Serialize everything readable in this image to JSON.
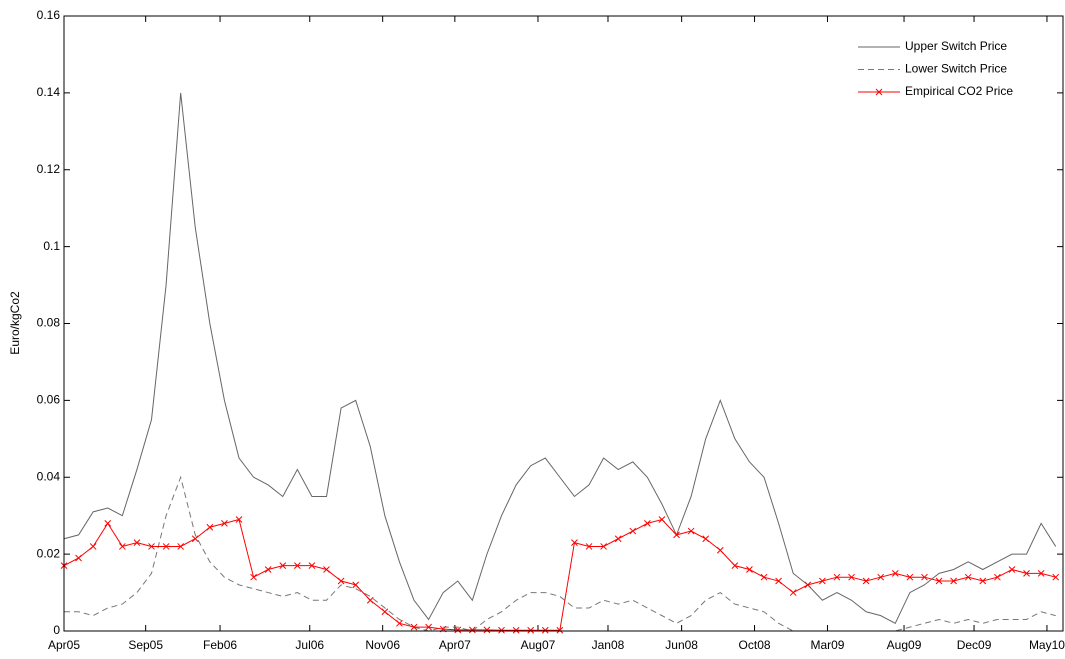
{
  "chart_data": {
    "type": "line",
    "y_label": "Euro/kgCo2",
    "x": [
      0,
      20,
      40,
      60,
      80,
      100,
      120,
      140,
      160,
      180,
      200,
      220,
      240,
      260,
      280,
      300,
      320,
      340,
      360,
      380,
      400,
      420,
      440,
      460,
      480,
      500,
      520,
      540,
      560,
      580,
      600,
      620,
      640,
      660,
      680,
      700,
      720,
      740,
      760,
      780,
      800,
      820,
      840,
      860,
      880,
      900,
      920,
      940,
      960,
      980,
      1000,
      1020,
      1040,
      1060,
      1080,
      1100,
      1120,
      1140,
      1160,
      1180,
      1200,
      1220,
      1240,
      1260,
      1280,
      1300,
      1320,
      1340,
      1360
    ],
    "xlim": [
      0,
      1370
    ],
    "xticks": [
      {
        "value": 0,
        "label": "Apr05"
      },
      {
        "value": 112,
        "label": "Sep05"
      },
      {
        "value": 214,
        "label": "Feb06"
      },
      {
        "value": 337,
        "label": "Jul06"
      },
      {
        "value": 437,
        "label": "Nov06"
      },
      {
        "value": 536,
        "label": "Apr07"
      },
      {
        "value": 650,
        "label": "Aug07"
      },
      {
        "value": 746,
        "label": "Jan08"
      },
      {
        "value": 847,
        "label": "Jun08"
      },
      {
        "value": 947,
        "label": "Oct08"
      },
      {
        "value": 1047,
        "label": "Mar09"
      },
      {
        "value": 1152,
        "label": "Aug09"
      },
      {
        "value": 1248,
        "label": "Dec09"
      },
      {
        "value": 1348,
        "label": "May10"
      }
    ],
    "ylim": [
      0,
      0.16
    ],
    "yticks": [
      0,
      0.02,
      0.04,
      0.06,
      0.08,
      0.1,
      0.12,
      0.14,
      0.16
    ],
    "legend": "top-right",
    "series": [
      {
        "name": "Upper Switch Price",
        "color": "#666666",
        "dash": "solid",
        "marker": "none",
        "values": [
          0.024,
          0.025,
          0.031,
          0.032,
          0.03,
          0.042,
          0.055,
          0.09,
          0.14,
          0.105,
          0.08,
          0.06,
          0.045,
          0.04,
          0.038,
          0.035,
          0.042,
          0.035,
          0.035,
          0.058,
          0.06,
          0.048,
          0.03,
          0.018,
          0.008,
          0.003,
          0.01,
          0.013,
          0.008,
          0.02,
          0.03,
          0.038,
          0.043,
          0.045,
          0.04,
          0.035,
          0.038,
          0.045,
          0.042,
          0.044,
          0.04,
          0.033,
          0.025,
          0.035,
          0.05,
          0.06,
          0.05,
          0.044,
          0.04,
          0.028,
          0.015,
          0.012,
          0.008,
          0.01,
          0.008,
          0.005,
          0.004,
          0.002,
          0.01,
          0.012,
          0.015,
          0.016,
          0.018,
          0.016,
          0.018,
          0.02,
          0.02,
          0.028,
          0.022
        ]
      },
      {
        "name": "Lower Switch Price",
        "color": "#777777",
        "dash": "dashed",
        "marker": "none",
        "values": [
          0.005,
          0.005,
          0.004,
          0.006,
          0.007,
          0.01,
          0.015,
          0.03,
          0.04,
          0.025,
          0.018,
          0.014,
          0.012,
          0.011,
          0.01,
          0.009,
          0.01,
          0.008,
          0.008,
          0.012,
          0.011,
          0.009,
          0.006,
          0.003,
          0.001,
          0,
          0.001,
          0.001,
          0,
          0.003,
          0.005,
          0.008,
          0.01,
          0.01,
          0.009,
          0.006,
          0.006,
          0.008,
          0.007,
          0.008,
          0.006,
          0.004,
          0.002,
          0.004,
          0.008,
          0.01,
          0.007,
          0.006,
          0.005,
          0.002,
          0,
          0,
          0,
          0,
          0,
          0,
          0,
          0,
          0.001,
          0.002,
          0.003,
          0.002,
          0.003,
          0.002,
          0.003,
          0.003,
          0.003,
          0.005,
          0.004
        ]
      },
      {
        "name": "Empirical CO2 Price",
        "color": "#ff0000",
        "dash": "solid",
        "marker": "x",
        "values": [
          0.017,
          0.019,
          0.022,
          0.028,
          0.022,
          0.023,
          0.022,
          0.022,
          0.022,
          0.024,
          0.027,
          0.028,
          0.029,
          0.014,
          0.016,
          0.017,
          0.017,
          0.017,
          0.016,
          0.013,
          0.012,
          0.008,
          0.005,
          0.002,
          0.001,
          0.001,
          0.0005,
          0.0003,
          0.0003,
          0.0003,
          0.0002,
          0.0002,
          0.0002,
          0.0002,
          0.0002,
          0.023,
          0.022,
          0.022,
          0.024,
          0.026,
          0.028,
          0.029,
          0.025,
          0.026,
          0.024,
          0.021,
          0.017,
          0.016,
          0.014,
          0.013,
          0.01,
          0.012,
          0.013,
          0.014,
          0.014,
          0.013,
          0.014,
          0.015,
          0.014,
          0.014,
          0.013,
          0.013,
          0.014,
          0.013,
          0.014,
          0.016,
          0.015,
          0.015,
          0.014
        ]
      }
    ]
  }
}
